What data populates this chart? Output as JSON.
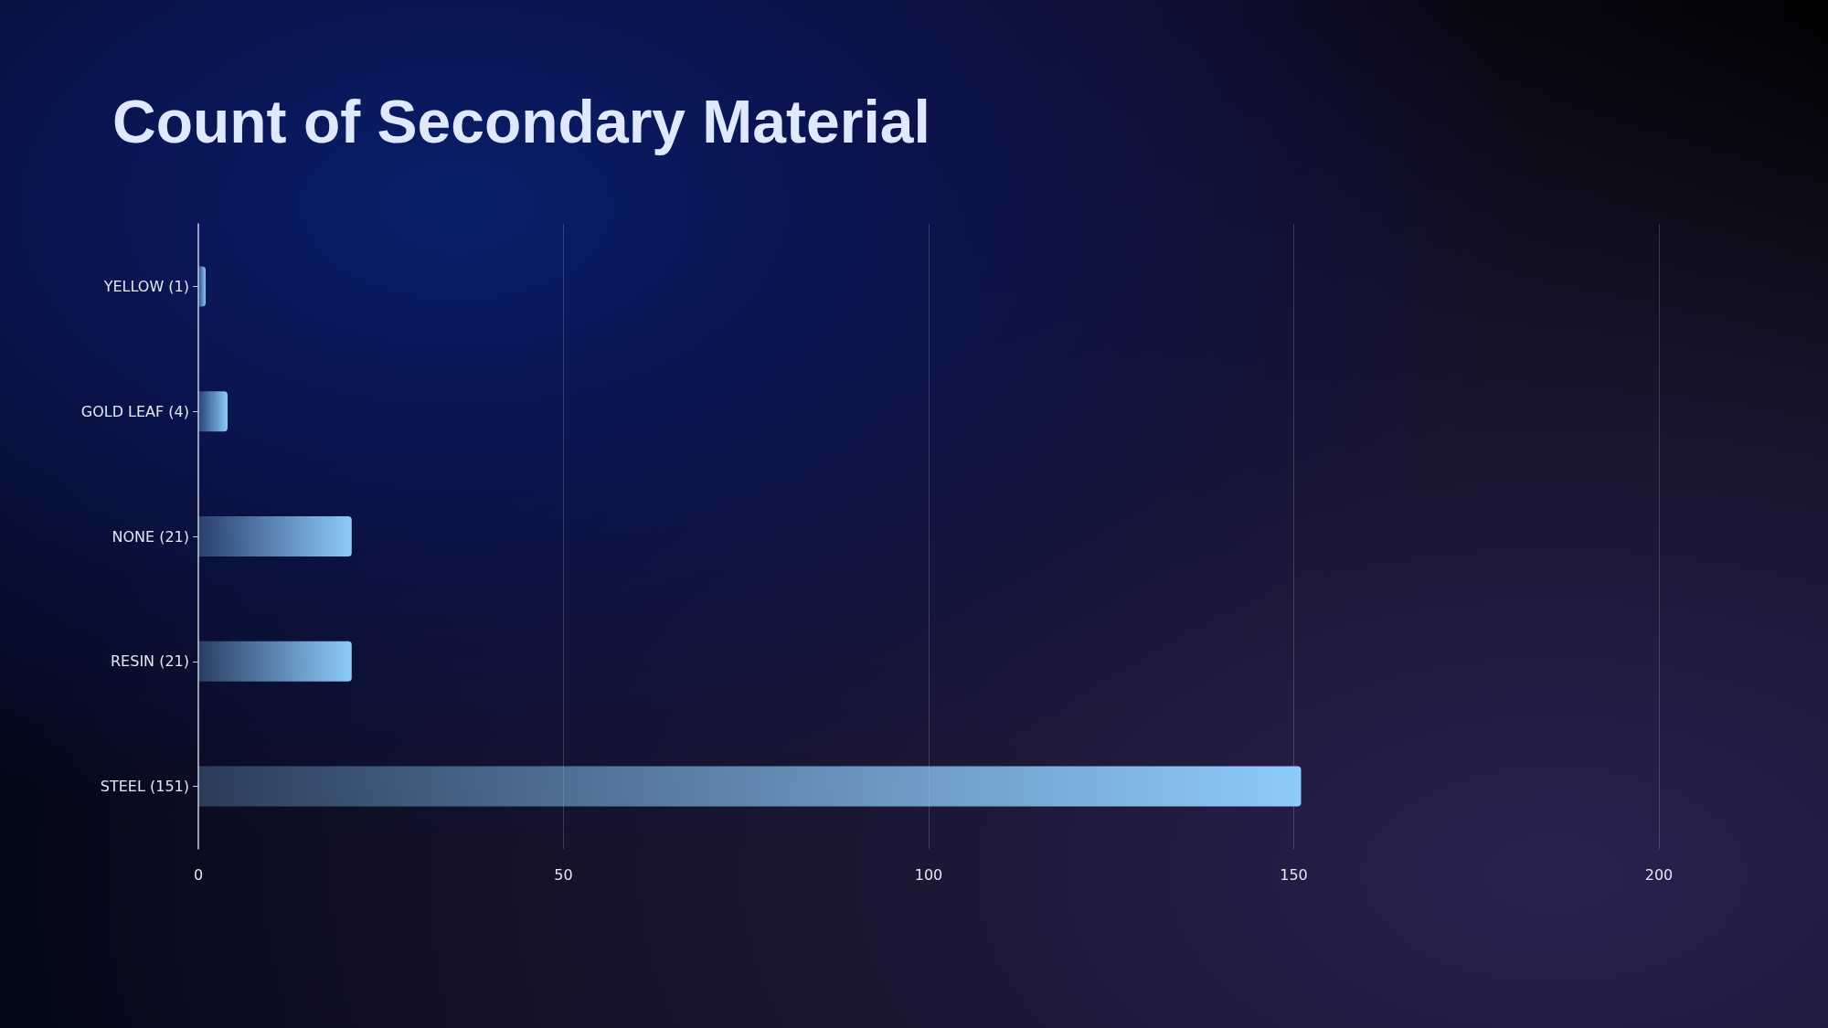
{
  "chart_data": {
    "type": "bar",
    "orientation": "horizontal",
    "title": "Count of Secondary Material",
    "categories": [
      "YELLOW (1)",
      "GOLD LEAF (4)",
      "NONE (21)",
      "RESIN (21)",
      "STEEL (151)"
    ],
    "values": [
      1,
      4,
      21,
      21,
      151
    ],
    "color": "#8ccbfa",
    "xlim": [
      0,
      200
    ],
    "xticks": [
      0,
      50,
      100,
      150,
      200
    ],
    "grid": "x"
  }
}
